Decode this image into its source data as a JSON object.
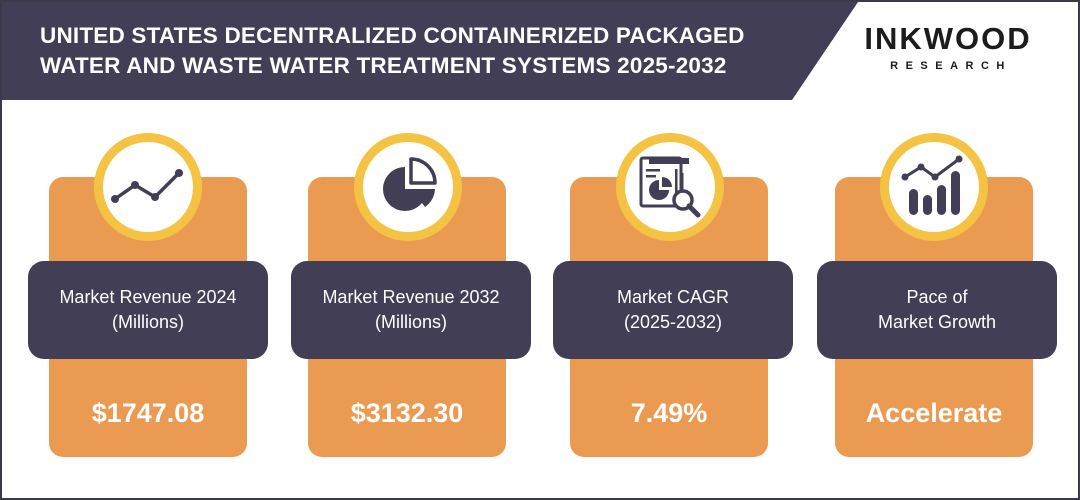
{
  "header": {
    "title_line1": "UNITED STATES DECENTRALIZED CONTAINERIZED PACKAGED",
    "title_line2": "WATER AND WASTE WATER TREATMENT SYSTEMS 2025-2032"
  },
  "logo": {
    "name": "INKWOOD",
    "sub": "RESEARCH"
  },
  "colors": {
    "header_band": "#413e55",
    "card": "#eb9a51",
    "ring": "#f4c343",
    "label_box": "#413e55"
  },
  "cards": [
    {
      "icon": "line-chart-icon",
      "label_line1": "Market Revenue 2024",
      "label_line2": "(Millions)",
      "value": "$1747.08"
    },
    {
      "icon": "pie-chart-icon",
      "label_line1": "Market Revenue 2032",
      "label_line2": "(Millions)",
      "value": "$3132.30"
    },
    {
      "icon": "report-magnifier-icon",
      "label_line1": "Market CAGR",
      "label_line2": "(2025-2032)",
      "value": "7.49%"
    },
    {
      "icon": "growth-bars-icon",
      "label_line1": "Pace of",
      "label_line2": "Market Growth",
      "value": "Accelerate"
    }
  ]
}
